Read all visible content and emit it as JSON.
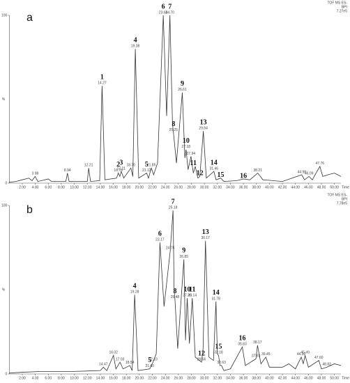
{
  "chart_data": [
    {
      "type": "line",
      "panel_label": "a",
      "header": [
        "TOF MS ES-",
        "BPI",
        "7.27e5"
      ],
      "x_label": "Time",
      "y_label": "%",
      "xlim": [
        0,
        51
      ],
      "ylim": [
        0,
        100
      ],
      "yticks": [
        0,
        100
      ],
      "xticks": [
        {
          "value": 2,
          "label": "2.00"
        },
        {
          "value": 4,
          "label": "4.00"
        },
        {
          "value": 6,
          "label": "6.00"
        },
        {
          "value": 8,
          "label": "8.00"
        },
        {
          "value": 10,
          "label": "10.00"
        },
        {
          "value": 12,
          "label": "12.00"
        },
        {
          "value": 14,
          "label": "14.00"
        },
        {
          "value": 16,
          "label": "16.00"
        },
        {
          "value": 18,
          "label": "18.00"
        },
        {
          "value": 20,
          "label": "20.00"
        },
        {
          "value": 22,
          "label": "22.00"
        },
        {
          "value": 24,
          "label": "24.00"
        },
        {
          "value": 26,
          "label": "26.00"
        },
        {
          "value": 28,
          "label": "28.00"
        },
        {
          "value": 30,
          "label": "30.00"
        },
        {
          "value": 32,
          "label": "32.00"
        },
        {
          "value": 34,
          "label": "34.00"
        },
        {
          "value": 36,
          "label": "36.00"
        },
        {
          "value": 38,
          "label": "38.00"
        },
        {
          "value": 40,
          "label": "40.00"
        },
        {
          "value": 42,
          "label": "42.00"
        },
        {
          "value": 44,
          "label": "44.00"
        },
        {
          "value": 46,
          "label": "46.00"
        },
        {
          "value": 48,
          "label": "48.00"
        },
        {
          "value": 50,
          "label": "50.00"
        }
      ],
      "color": "#333333",
      "x": [
        0,
        1,
        2,
        3,
        3.5,
        3.98,
        4.4,
        6,
        6.5,
        8.7,
        8.94,
        9.2,
        12,
        12.21,
        12.5,
        13.9,
        14.27,
        14.7,
        16.5,
        16.76,
        17,
        17.21,
        17.6,
        18.7,
        19,
        19.38,
        19.9,
        21.12,
        21.4,
        21.85,
        22.2,
        22.8,
        23.68,
        24.2,
        24.7,
        25.1,
        25.25,
        25.7,
        26.61,
        27,
        27.18,
        27.5,
        27.94,
        28.3,
        28.6,
        29,
        29.3,
        29.84,
        30.3,
        31.46,
        31.8,
        32.5,
        33,
        35,
        36,
        37,
        38.21,
        39,
        42,
        44.98,
        45.4,
        46.09,
        46.6,
        47.76,
        48.2,
        49,
        50,
        51
      ],
      "values": [
        0.5,
        1,
        2,
        3,
        1.5,
        4,
        1,
        2.5,
        1,
        1,
        6,
        1,
        1,
        9,
        1,
        1.5,
        58,
        2,
        3,
        6,
        4,
        7,
        3,
        9,
        4,
        80,
        3,
        6,
        3,
        9,
        5,
        12,
        100,
        40,
        100,
        35,
        30,
        12,
        54,
        15,
        20,
        8,
        16,
        6,
        10,
        3,
        4,
        31,
        3,
        7,
        2,
        3,
        1,
        1.5,
        2.5,
        2,
        6,
        2,
        1,
        5,
        2,
        4,
        2,
        10,
        4,
        5,
        6,
        4
      ],
      "annotations": [
        {
          "x": 3.98,
          "y": 4,
          "rt": "3.98"
        },
        {
          "x": 8.94,
          "y": 6,
          "rt": "8.94"
        },
        {
          "x": 12.21,
          "y": 9,
          "rt": "12.21"
        },
        {
          "x": 14.27,
          "y": 58,
          "number": "1",
          "rt": "14.27"
        },
        {
          "x": 16.76,
          "y": 6,
          "number": "2",
          "rt": "16.76"
        },
        {
          "x": 17.21,
          "y": 7,
          "number": "3",
          "rt": "17.21"
        },
        {
          "x": 18.7,
          "y": 9,
          "rt": "18.70"
        },
        {
          "x": 19.38,
          "y": 80,
          "number": "4",
          "rt": "19.38"
        },
        {
          "x": 21.12,
          "y": 6,
          "number": "5",
          "rt": "21.12"
        },
        {
          "x": 21.85,
          "y": 9,
          "rt": "21.85"
        },
        {
          "x": 23.68,
          "y": 100,
          "number": "6",
          "rt": "23.68"
        },
        {
          "x": 24.7,
          "y": 100,
          "number": "7",
          "rt": "24.70"
        },
        {
          "x": 25.25,
          "y": 30,
          "number": "8",
          "rt": "25.25"
        },
        {
          "x": 26.61,
          "y": 54,
          "number": "9",
          "rt": "26.61"
        },
        {
          "x": 27.18,
          "y": 20,
          "number": "10",
          "rt": "27.18"
        },
        {
          "x": 27.94,
          "y": 16,
          "rt": "27.94"
        },
        {
          "x": 28.3,
          "y": 10,
          "number": "11"
        },
        {
          "x": 29.3,
          "y": 4,
          "number": "12"
        },
        {
          "x": 29.84,
          "y": 31,
          "number": "13",
          "rt": "29.84"
        },
        {
          "x": 31.46,
          "y": 7,
          "number": "14",
          "rt": "31.46"
        },
        {
          "x": 32.5,
          "y": 3,
          "number": "15"
        },
        {
          "x": 36,
          "y": 2.5,
          "number": "16"
        },
        {
          "x": 38.21,
          "y": 6,
          "rt": "38.21"
        },
        {
          "x": 44.98,
          "y": 5,
          "rt": "44.98"
        },
        {
          "x": 46.09,
          "y": 4,
          "rt": "46.09"
        },
        {
          "x": 47.76,
          "y": 10,
          "rt": "47.76"
        }
      ]
    },
    {
      "type": "line",
      "panel_label": "b",
      "header": [
        "TOF MS ES-",
        "BPI",
        "7.78e5"
      ],
      "x_label": "Time",
      "y_label": "%",
      "xlim": [
        0,
        51
      ],
      "ylim": [
        0,
        100
      ],
      "yticks": [
        0,
        100
      ],
      "xticks": [
        {
          "value": 2,
          "label": "2.00"
        },
        {
          "value": 4,
          "label": "4.00"
        },
        {
          "value": 6,
          "label": "6.00"
        },
        {
          "value": 8,
          "label": "8.00"
        },
        {
          "value": 10,
          "label": "10.00"
        },
        {
          "value": 12,
          "label": "12.00"
        },
        {
          "value": 14,
          "label": "14.00"
        },
        {
          "value": 16,
          "label": "16.00"
        },
        {
          "value": 18,
          "label": "18.00"
        },
        {
          "value": 20,
          "label": "20.00"
        },
        {
          "value": 22,
          "label": "22.00"
        },
        {
          "value": 24,
          "label": "24.00"
        },
        {
          "value": 26,
          "label": "26.00"
        },
        {
          "value": 28,
          "label": "28.00"
        },
        {
          "value": 30,
          "label": "30.00"
        },
        {
          "value": 32,
          "label": "32.00"
        },
        {
          "value": 34,
          "label": "34.00"
        },
        {
          "value": 36,
          "label": "36.00"
        },
        {
          "value": 38,
          "label": "38.00"
        },
        {
          "value": 40,
          "label": "40.00"
        },
        {
          "value": 42,
          "label": "42.00"
        },
        {
          "value": 44,
          "label": "44.00"
        },
        {
          "value": 46,
          "label": "46.00"
        },
        {
          "value": 48,
          "label": "48.00"
        },
        {
          "value": 50,
          "label": "50.00"
        }
      ],
      "color": "#333333",
      "x": [
        0,
        2,
        5,
        10,
        14,
        14.47,
        15,
        16.02,
        16.4,
        17.03,
        17.5,
        18.54,
        18.9,
        19.28,
        19.8,
        21.6,
        22.1,
        22.6,
        23.17,
        23.8,
        24.75,
        25.18,
        25.35,
        25.48,
        25.9,
        26.85,
        27.1,
        27.36,
        27.7,
        28.14,
        28.6,
        29.56,
        29.8,
        30.17,
        30.7,
        31.4,
        31.78,
        32,
        32.18,
        32.4,
        32.63,
        33,
        34,
        35.83,
        36.3,
        37.93,
        38.17,
        38.7,
        39.45,
        40,
        42,
        43,
        44,
        44.9,
        45.2,
        45.49,
        46,
        47.6,
        48,
        48.82,
        50,
        51
      ],
      "values": [
        0.5,
        1,
        1.5,
        1.5,
        2,
        4,
        2,
        11,
        3,
        7,
        3,
        5,
        2,
        47,
        2,
        3,
        7,
        12,
        78,
        40,
        73,
        97,
        50,
        44,
        15,
        68,
        20,
        45,
        18,
        45,
        10,
        7,
        15,
        79,
        10,
        8,
        43,
        12,
        11,
        5,
        5,
        2,
        3,
        16,
        5,
        9,
        17,
        6,
        10,
        4,
        4,
        6,
        3,
        10,
        6,
        11,
        4,
        8,
        3,
        4,
        6,
        5
      ],
      "annotations": [
        {
          "x": 14.47,
          "y": 4,
          "rt": "14.47"
        },
        {
          "x": 16.02,
          "y": 11,
          "rt": "16.02"
        },
        {
          "x": 17.03,
          "y": 7,
          "rt": "17.03"
        },
        {
          "x": 18.54,
          "y": 5,
          "rt": "18.54"
        },
        {
          "x": 19.28,
          "y": 47,
          "number": "4",
          "rt": "19.28"
        },
        {
          "x": 21.6,
          "y": 3,
          "number": "5",
          "rt": "21.60"
        },
        {
          "x": 22.1,
          "y": 7,
          "rt": "22.10"
        },
        {
          "x": 23.17,
          "y": 78,
          "number": "6",
          "rt": "23.17"
        },
        {
          "x": 24.75,
          "y": 73,
          "rt": "24.75"
        },
        {
          "x": 25.18,
          "y": 97,
          "number": "7",
          "rt": "25.18"
        },
        {
          "x": 25.48,
          "y": 44,
          "number": "8",
          "rt": "25.48"
        },
        {
          "x": 26.85,
          "y": 68,
          "number": "9",
          "rt": "26.85"
        },
        {
          "x": 27.36,
          "y": 45,
          "number": "10",
          "rt": "27.36"
        },
        {
          "x": 28.14,
          "y": 45,
          "number": "11",
          "rt": "28.14"
        },
        {
          "x": 29.56,
          "y": 7,
          "number": "12",
          "rt": "29.56"
        },
        {
          "x": 30.17,
          "y": 79,
          "number": "13",
          "rt": "30.17"
        },
        {
          "x": 31.78,
          "y": 43,
          "number": "14",
          "rt": "31.78"
        },
        {
          "x": 32.18,
          "y": 11,
          "number": "15",
          "rt": "32.18"
        },
        {
          "x": 32.63,
          "y": 5,
          "rt": "32.63"
        },
        {
          "x": 35.83,
          "y": 16,
          "number": "16",
          "rt": "35.83"
        },
        {
          "x": 37.93,
          "y": 9,
          "rt": "37.93"
        },
        {
          "x": 38.17,
          "y": 17,
          "rt": "38.17"
        },
        {
          "x": 39.45,
          "y": 10,
          "rt": "39.45"
        },
        {
          "x": 44.9,
          "y": 10,
          "rt": "44.90"
        },
        {
          "x": 45.49,
          "y": 11,
          "rt": "45.49"
        },
        {
          "x": 47.6,
          "y": 8,
          "rt": "47.60"
        },
        {
          "x": 48.82,
          "y": 4,
          "rt": "48.82"
        }
      ]
    }
  ]
}
